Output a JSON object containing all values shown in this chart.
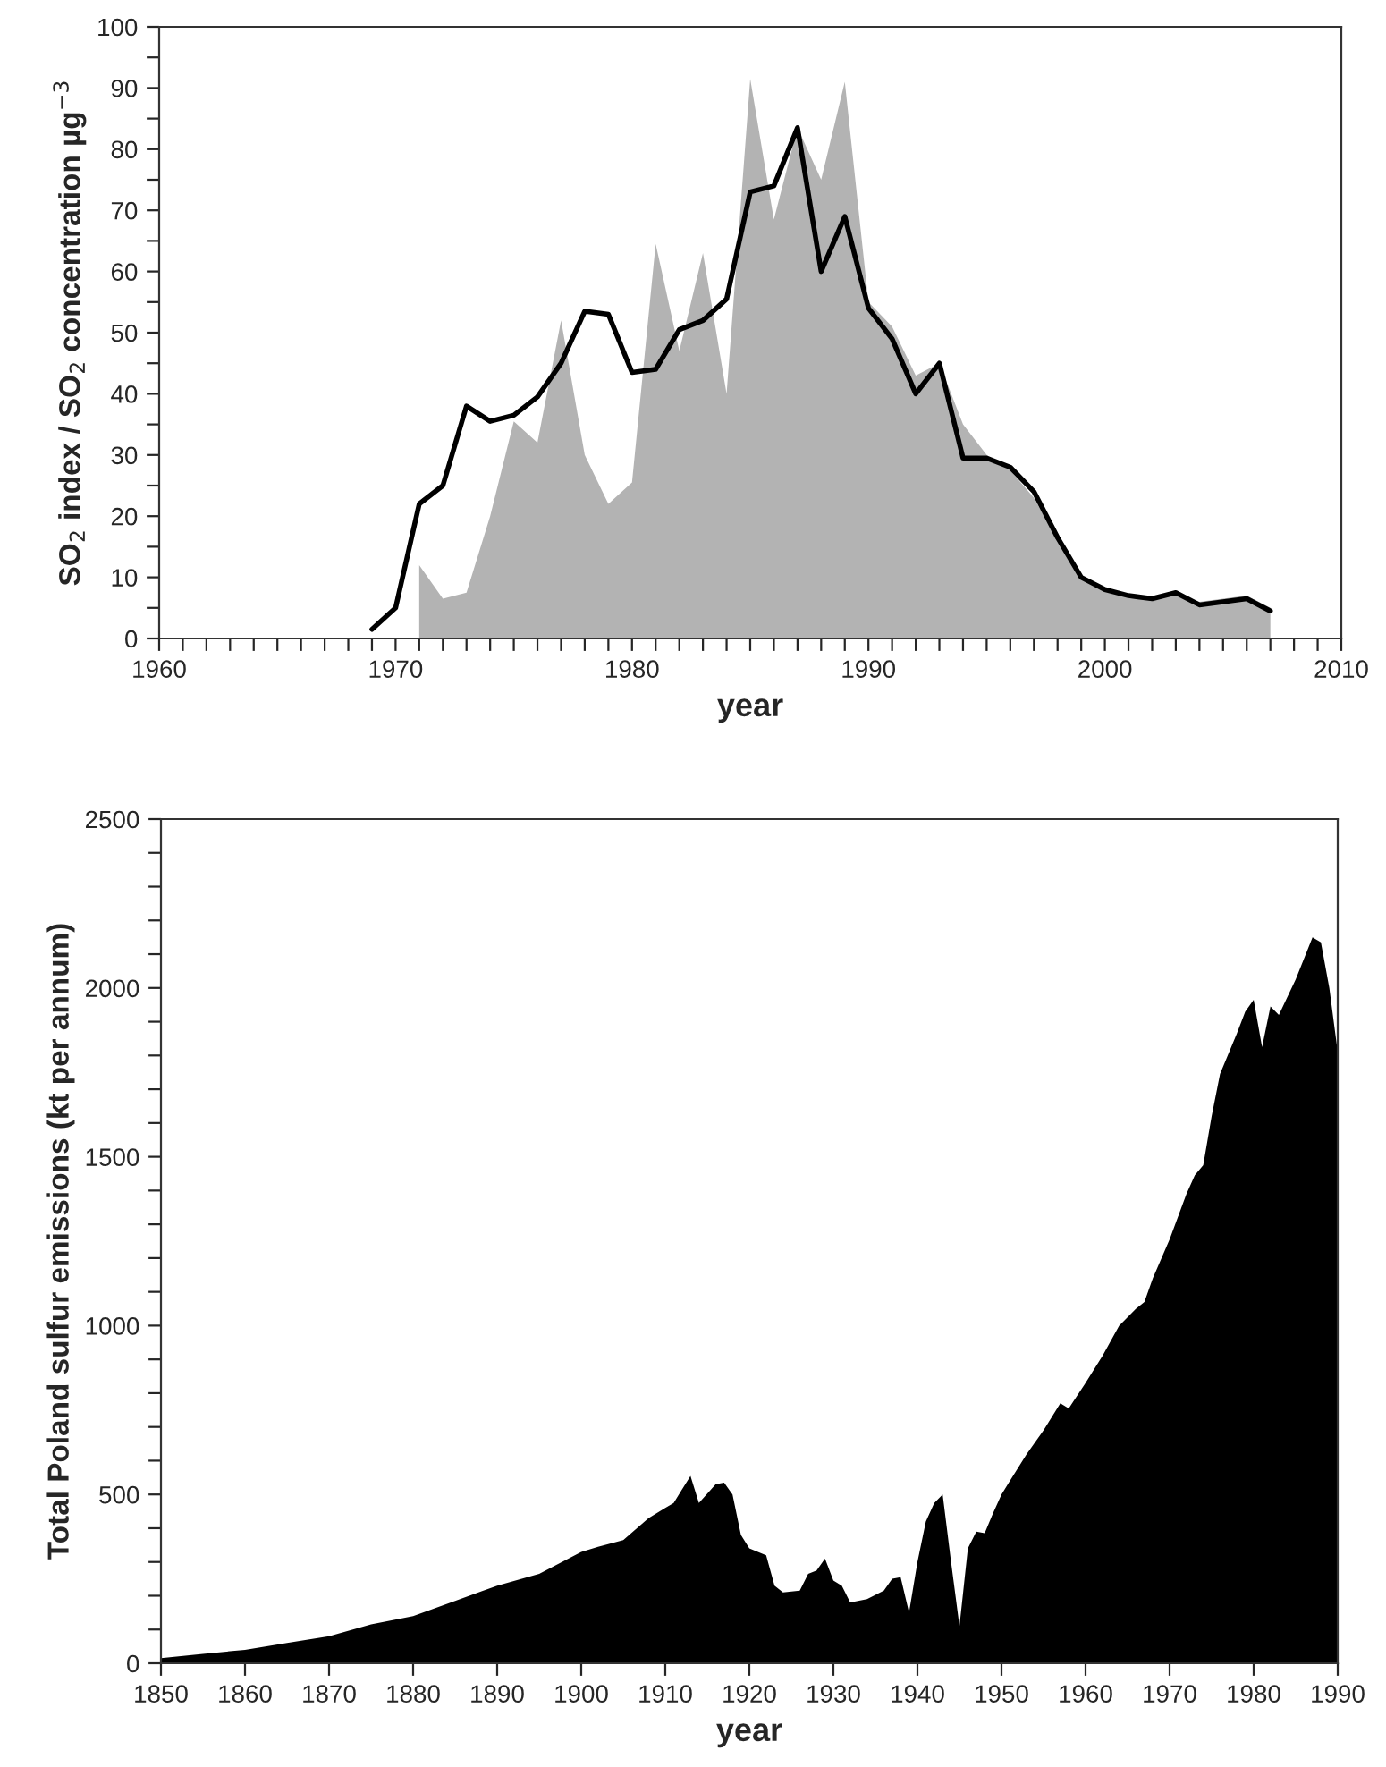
{
  "chart_data": [
    {
      "type": "area",
      "xlabel": "year",
      "ylabel": "SO$_{2}$ index / SO$_{2}$ concentration µg$^{−3}$",
      "series": [
        {
          "color": "#b3b3b3",
          "x": [
            1971,
            1972,
            1973,
            1974,
            1975,
            1976,
            1977,
            1978,
            1979,
            1980,
            1981,
            1982,
            1983,
            1984,
            1985,
            1986,
            1987,
            1988,
            1989,
            1990,
            1991,
            1992,
            1993,
            1994,
            1995,
            1996,
            1997,
            1998,
            1999,
            2000,
            2001,
            2002,
            2003,
            2004,
            2005,
            2006,
            2007
          ],
          "values": [
            12,
            6.5,
            7.5,
            20,
            35.5,
            32,
            52,
            30,
            22,
            25.5,
            64.5,
            47,
            63,
            40,
            91.5,
            68.5,
            83.5,
            75,
            91,
            55,
            51,
            43,
            45,
            35,
            30,
            27.5,
            23,
            16,
            10,
            8,
            7,
            6.5,
            7.5,
            6,
            6.5,
            7,
            5
          ]
        },
        {
          "type": "line",
          "color": "#000000",
          "x": [
            1969,
            1970,
            1971,
            1972,
            1973,
            1974,
            1975,
            1976,
            1977,
            1978,
            1979,
            1980,
            1981,
            1982,
            1983,
            1984,
            1985,
            1986,
            1987,
            1988,
            1989,
            1990,
            1991,
            1992,
            1993,
            1994,
            1995,
            1996,
            1997,
            1998,
            1999,
            2000,
            2001,
            2002,
            2003,
            2004,
            2005,
            2006,
            2007
          ],
          "values": [
            1.5,
            5,
            22,
            25,
            38,
            35.5,
            36.5,
            39.5,
            45,
            53.5,
            53,
            43.5,
            44,
            50.5,
            52,
            55.5,
            73,
            74,
            83.5,
            60,
            69,
            54,
            49,
            40,
            45,
            29.5,
            29.5,
            28,
            24,
            16.5,
            10,
            8,
            7,
            6.5,
            7.5,
            5.5,
            6,
            6.5,
            4.5
          ]
        }
      ],
      "xlim": [
        1960,
        2010
      ],
      "xticks": [
        1960,
        {
          "value": 1961,
          "label": null
        },
        {
          "value": 1962,
          "label": null
        },
        {
          "value": 1963,
          "label": null
        },
        {
          "value": 1964,
          "label": null
        },
        {
          "value": 1965,
          "label": null
        },
        {
          "value": 1966,
          "label": null
        },
        {
          "value": 1967,
          "label": null
        },
        {
          "value": 1968,
          "label": null
        },
        {
          "value": 1969,
          "label": null
        },
        1970,
        {
          "value": 1971,
          "label": null
        },
        {
          "value": 1972,
          "label": null
        },
        {
          "value": 1973,
          "label": null
        },
        {
          "value": 1974,
          "label": null
        },
        {
          "value": 1975,
          "label": null
        },
        {
          "value": 1976,
          "label": null
        },
        {
          "value": 1977,
          "label": null
        },
        {
          "value": 1978,
          "label": null
        },
        {
          "value": 1979,
          "label": null
        },
        1980,
        {
          "value": 1981,
          "label": null
        },
        {
          "value": 1982,
          "label": null
        },
        {
          "value": 1983,
          "label": null
        },
        {
          "value": 1984,
          "label": null
        },
        {
          "value": 1985,
          "label": null
        },
        {
          "value": 1986,
          "label": null
        },
        {
          "value": 1987,
          "label": null
        },
        {
          "value": 1988,
          "label": null
        },
        {
          "value": 1989,
          "label": null
        },
        1990,
        {
          "value": 1991,
          "label": null
        },
        {
          "value": 1992,
          "label": null
        },
        {
          "value": 1993,
          "label": null
        },
        {
          "value": 1994,
          "label": null
        },
        {
          "value": 1995,
          "label": null
        },
        {
          "value": 1996,
          "label": null
        },
        {
          "value": 1997,
          "label": null
        },
        {
          "value": 1998,
          "label": null
        },
        {
          "value": 1999,
          "label": null
        },
        2000,
        {
          "value": 2001,
          "label": null
        },
        {
          "value": 2002,
          "label": null
        },
        {
          "value": 2003,
          "label": null
        },
        {
          "value": 2004,
          "label": null
        },
        {
          "value": 2005,
          "label": null
        },
        {
          "value": 2006,
          "label": null
        },
        {
          "value": 2007,
          "label": null
        },
        {
          "value": 2008,
          "label": null
        },
        {
          "value": 2009,
          "label": null
        },
        2010
      ],
      "ylim": [
        0,
        100
      ],
      "yticks": [
        0,
        {
          "value": 5,
          "label": null
        },
        10,
        {
          "value": 15,
          "label": null
        },
        20,
        {
          "value": 25,
          "label": null
        },
        30,
        {
          "value": 35,
          "label": null
        },
        40,
        {
          "value": 45,
          "label": null
        },
        50,
        {
          "value": 55,
          "label": null
        },
        60,
        {
          "value": 65,
          "label": null
        },
        70,
        {
          "value": 75,
          "label": null
        },
        80,
        {
          "value": 85,
          "label": null
        },
        90,
        {
          "value": 95,
          "label": null
        },
        100
      ]
    },
    {
      "type": "area",
      "xlabel": "year",
      "ylabel": "Total Poland sulfur emissions (kt per annum)",
      "series": [
        {
          "color": "#000000",
          "x": [
            1850,
            1855,
            1860,
            1865,
            1870,
            1875,
            1880,
            1885,
            1890,
            1895,
            1900,
            1902,
            1905,
            1908,
            1910,
            1911,
            1913,
            1914,
            1916,
            1917,
            1918,
            1919,
            1920,
            1922,
            1923,
            1924,
            1926,
            1927,
            1928,
            1929,
            1930,
            1931,
            1932,
            1934,
            1936,
            1937,
            1938,
            1939,
            1940,
            1941,
            1942,
            1943,
            1944,
            1945,
            1946,
            1947,
            1948,
            1949,
            1950,
            1951,
            1953,
            1955,
            1957,
            1958,
            1960,
            1962,
            1964,
            1966,
            1967,
            1968,
            1970,
            1972,
            1973,
            1974,
            1975,
            1976,
            1978,
            1979,
            1980,
            1981,
            1982,
            1983,
            1985,
            1987,
            1988,
            1989,
            1990
          ],
          "values": [
            15,
            28,
            40,
            60,
            80,
            115,
            140,
            185,
            230,
            265,
            330,
            345,
            365,
            430,
            460,
            475,
            555,
            475,
            530,
            535,
            500,
            380,
            340,
            320,
            230,
            210,
            215,
            265,
            275,
            310,
            245,
            230,
            180,
            190,
            215,
            250,
            255,
            150,
            300,
            420,
            475,
            500,
            300,
            110,
            340,
            390,
            385,
            445,
            500,
            540,
            620,
            690,
            770,
            755,
            830,
            910,
            1000,
            1050,
            1070,
            1140,
            1255,
            1390,
            1445,
            1475,
            1620,
            1745,
            1865,
            1930,
            1965,
            1825,
            1945,
            1920,
            2025,
            2150,
            2135,
            2000,
            1810
          ]
        }
      ],
      "xlim": [
        1850,
        1990
      ],
      "xticks": [
        1850,
        1860,
        1870,
        1880,
        1890,
        1900,
        1910,
        1920,
        1930,
        1940,
        1950,
        1960,
        1970,
        1980,
        1990
      ],
      "ylim": [
        0,
        2500
      ],
      "yticks": [
        0,
        {
          "value": 100,
          "label": null
        },
        {
          "value": 200,
          "label": null
        },
        {
          "value": 300,
          "label": null
        },
        {
          "value": 400,
          "label": null
        },
        500,
        {
          "value": 600,
          "label": null
        },
        {
          "value": 700,
          "label": null
        },
        {
          "value": 800,
          "label": null
        },
        {
          "value": 900,
          "label": null
        },
        1000,
        {
          "value": 1100,
          "label": null
        },
        {
          "value": 1200,
          "label": null
        },
        {
          "value": 1300,
          "label": null
        },
        {
          "value": 1400,
          "label": null
        },
        1500,
        {
          "value": 1600,
          "label": null
        },
        {
          "value": 1700,
          "label": null
        },
        {
          "value": 1800,
          "label": null
        },
        {
          "value": 1900,
          "label": null
        },
        2000,
        {
          "value": 2100,
          "label": null
        },
        {
          "value": 2200,
          "label": null
        },
        {
          "value": 2300,
          "label": null
        },
        {
          "value": 2400,
          "label": null
        },
        2500
      ]
    }
  ]
}
